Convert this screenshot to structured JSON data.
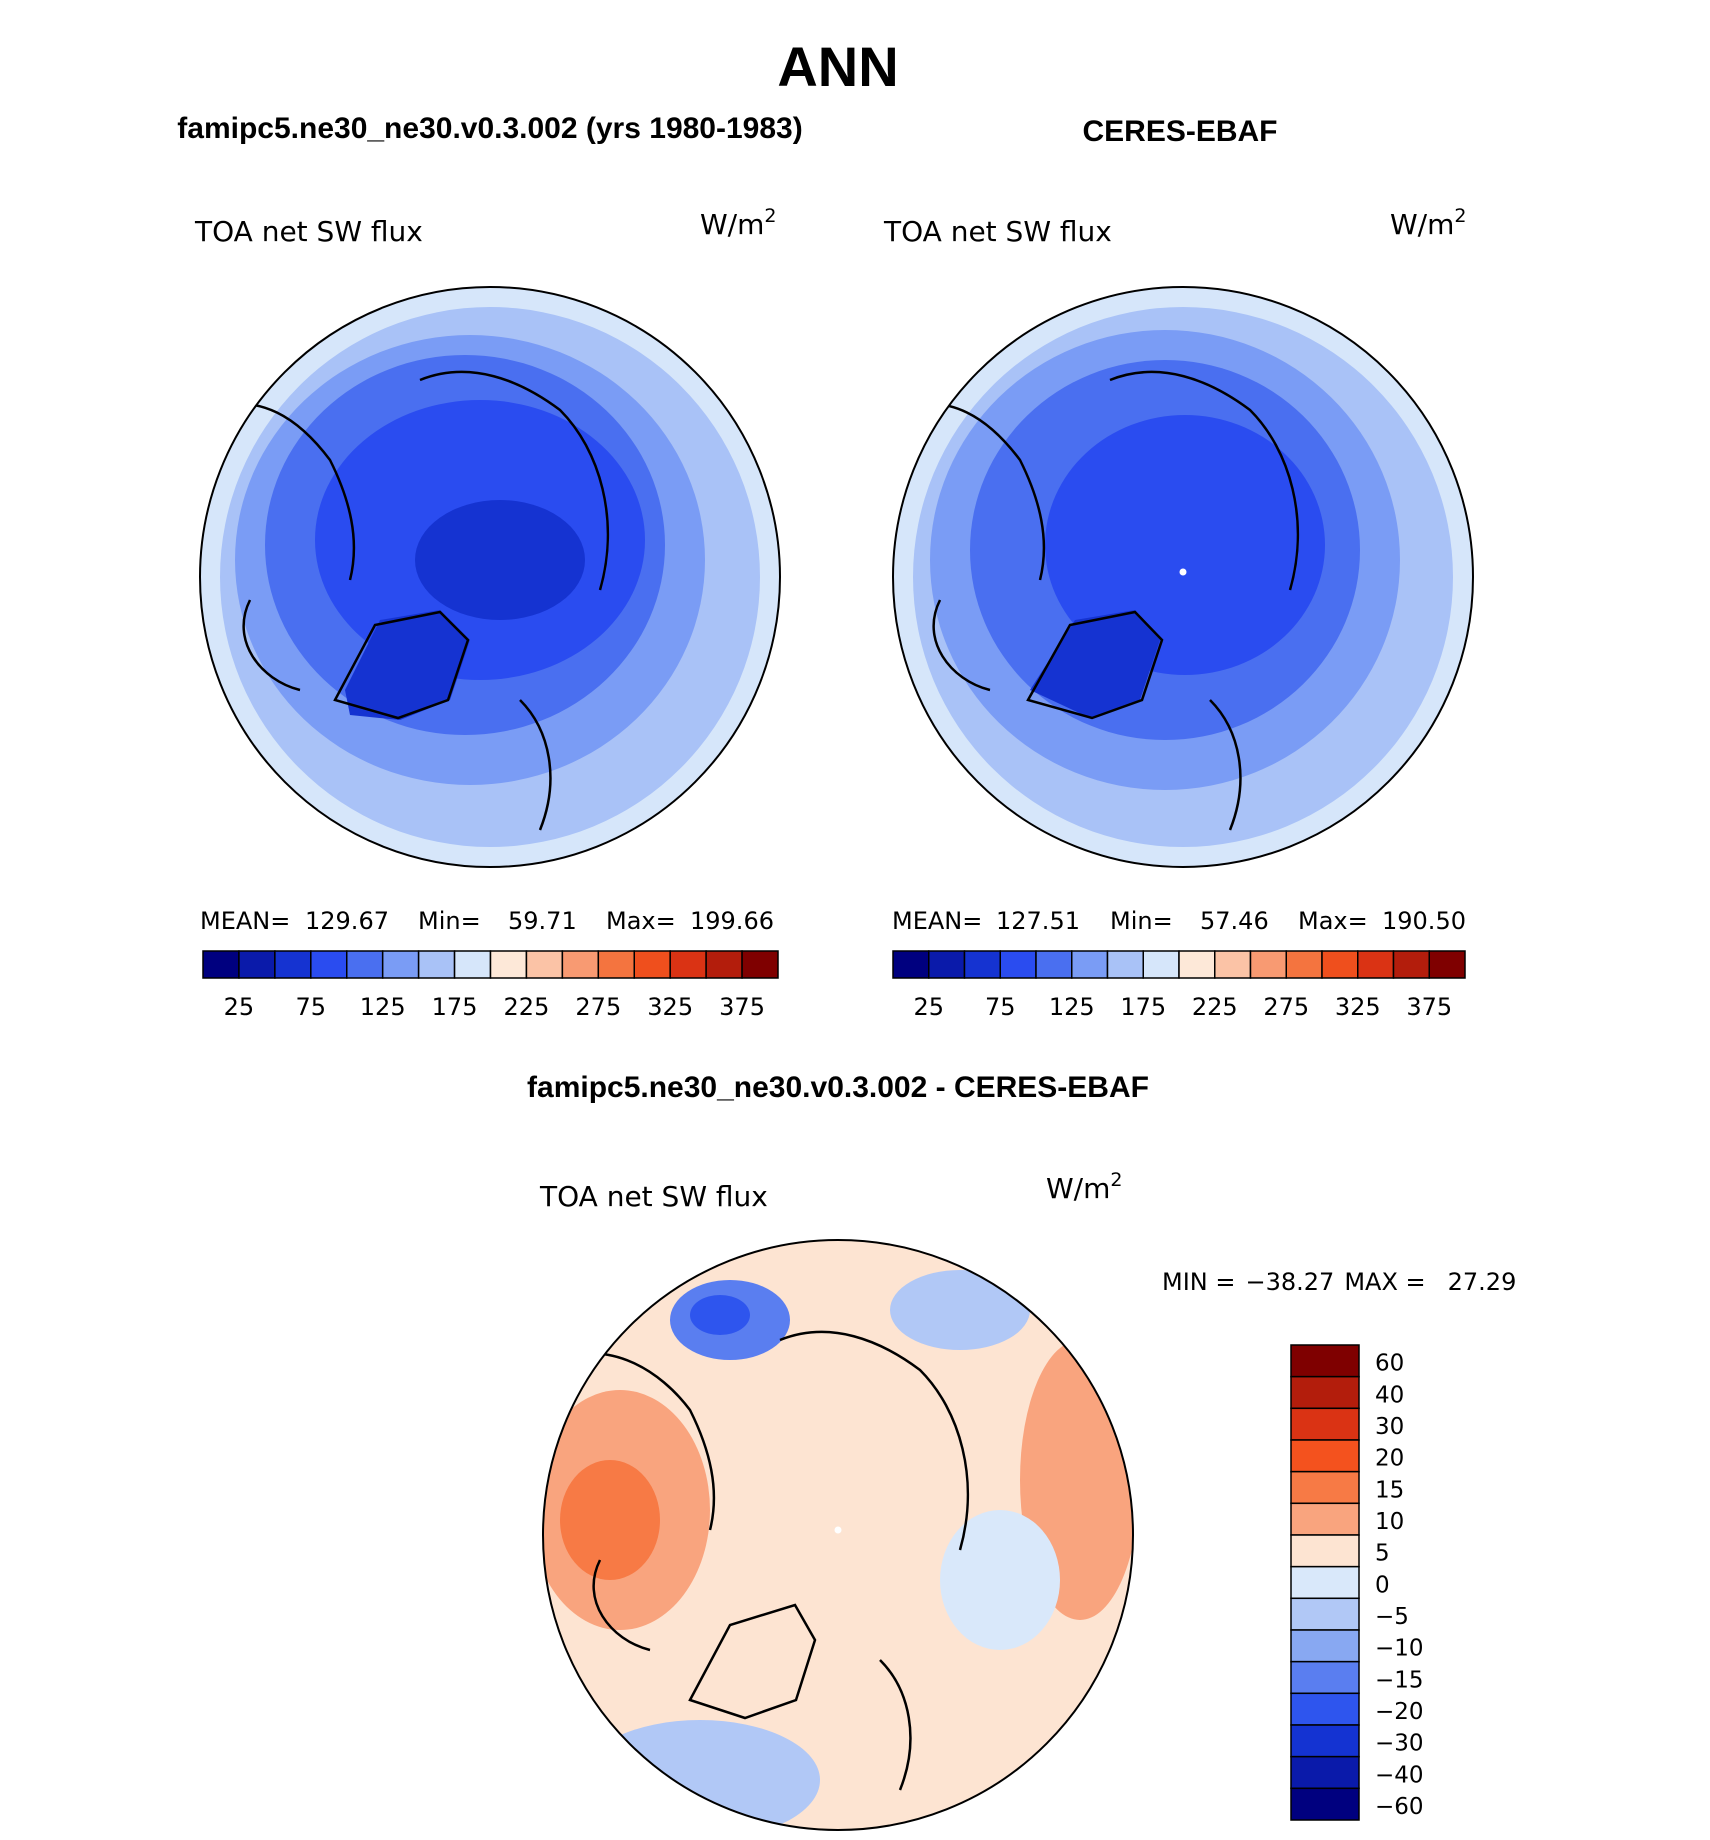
{
  "title": "ANN",
  "panels": [
    {
      "heading": "famipc5.ne30_ne30.v0.3.002 (yrs 1980-1983)",
      "field": "TOA net SW flux",
      "units": "W/m",
      "units_sup": "2",
      "stats": {
        "mean_label": "MEAN=",
        "mean": "129.67",
        "min_label": "Min=",
        "min": "59.71",
        "max_label": "Max=",
        "max": "199.66"
      }
    },
    {
      "heading": "CERES-EBAF",
      "field": "TOA net SW flux",
      "units": "W/m",
      "units_sup": "2",
      "stats": {
        "mean_label": "MEAN=",
        "mean": "127.51",
        "min_label": "Min=",
        "min": "57.46",
        "max_label": "Max=",
        "max": "190.50"
      }
    }
  ],
  "abs_colorbar": {
    "colors": [
      "#00007f",
      "#0a1aaa",
      "#1533d1",
      "#2a4cf0",
      "#4a6ff0",
      "#7a9cf5",
      "#a9c2f7",
      "#d6e6fa",
      "#fde8d8",
      "#fbc3a6",
      "#f89a72",
      "#f4743f",
      "#ef4f1d",
      "#da3314",
      "#b31d0c",
      "#7f0000"
    ],
    "tick_labels": [
      "25",
      "75",
      "125",
      "175",
      "225",
      "275",
      "325",
      "375"
    ]
  },
  "diff_panel": {
    "heading": "famipc5.ne30_ne30.v0.3.002 - CERES-EBAF",
    "field": "TOA net SW flux",
    "units": "W/m",
    "units_sup": "2",
    "range": {
      "min_label": "MIN =",
      "min": "−38.27",
      "max_label": "MAX =",
      "max": "27.29"
    }
  },
  "diff_colorbar": {
    "colors_top_to_bottom": [
      "#7f0000",
      "#b31d0c",
      "#da3314",
      "#f4521e",
      "#f77a45",
      "#f9a47e",
      "#fde4d2",
      "#d9e8fa",
      "#b1c8f6",
      "#88a8f2",
      "#5a7ef0",
      "#2e55ee",
      "#1433d2",
      "#0a1aaa",
      "#00007f"
    ],
    "tick_labels": [
      "60",
      "40",
      "30",
      "20",
      "15",
      "10",
      "5",
      "0",
      "−5",
      "−10",
      "−15",
      "−20",
      "−30",
      "−40",
      "−60"
    ]
  },
  "map_fill": {
    "land_outline": "#000000",
    "pole_marker": "#ffffff"
  }
}
